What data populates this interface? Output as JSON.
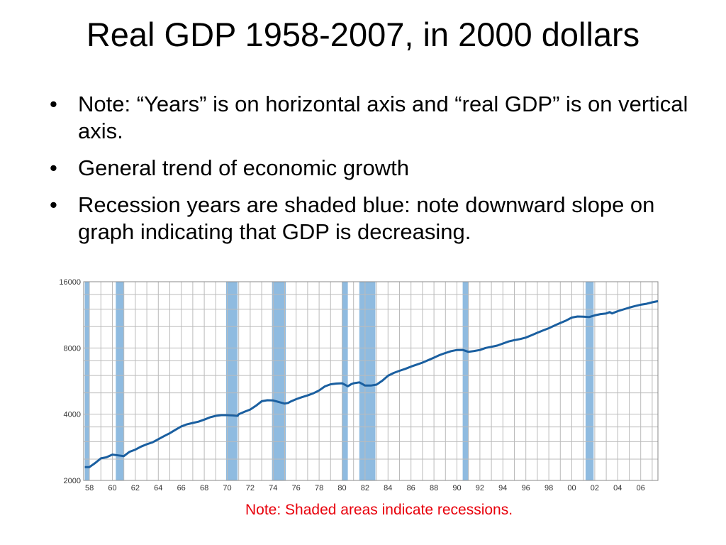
{
  "slide": {
    "title": "Real GDP 1958-2007, in 2000 dollars",
    "bullets": [
      "Note: “Years” is on horizontal axis and “real GDP” is on vertical axis.",
      "General trend of economic growth",
      "Recession years are shaded blue: note downward slope on graph indicating that GDP is decreasing."
    ],
    "bullet_glyph": "•",
    "footnote": "Note: Shaded areas indicate recessions."
  },
  "chart_data": {
    "type": "line",
    "title": "",
    "xlabel": "",
    "ylabel": "",
    "y_scale": "log",
    "ylim": [
      2000,
      16000
    ],
    "xlim": [
      1957.5,
      2007.5
    ],
    "grid": true,
    "y_ticks": [
      2000,
      4000,
      8000,
      16000
    ],
    "x_tick_labels": [
      "58",
      "60",
      "62",
      "64",
      "66",
      "68",
      "70",
      "72",
      "74",
      "76",
      "78",
      "80",
      "82",
      "84",
      "86",
      "88",
      "90",
      "92",
      "94",
      "96",
      "98",
      "00",
      "02",
      "04",
      "06"
    ],
    "x_tick_values": [
      1958,
      1960,
      1962,
      1964,
      1966,
      1968,
      1970,
      1972,
      1974,
      1976,
      1978,
      1980,
      1982,
      1984,
      1986,
      1988,
      1990,
      1992,
      1994,
      1996,
      1998,
      2000,
      2002,
      2004,
      2006
    ],
    "line_color": "#1a5fa0",
    "recession_color": "#8fbbe0",
    "recessions": [
      {
        "start": 1957.6,
        "end": 1958.0
      },
      {
        "start": 1960.3,
        "end": 1961.0
      },
      {
        "start": 1969.9,
        "end": 1970.9
      },
      {
        "start": 1973.9,
        "end": 1975.1
      },
      {
        "start": 1980.0,
        "end": 1980.5
      },
      {
        "start": 1981.5,
        "end": 1982.9
      },
      {
        "start": 1990.5,
        "end": 1991.0
      },
      {
        "start": 2001.2,
        "end": 2001.9
      }
    ],
    "series": [
      {
        "x": [
          1957.6,
          1958.0,
          1958.5,
          1959.0,
          1959.5,
          1960.0,
          1960.5,
          1961.0,
          1961.5,
          1962.0,
          1962.5,
          1963.0,
          1963.5,
          1964.0,
          1964.5,
          1965.0,
          1965.5,
          1966.0,
          1966.5,
          1967.0,
          1967.5,
          1968.0,
          1968.5,
          1969.0,
          1969.5,
          1970.0,
          1970.5,
          1970.9,
          1971.0,
          1971.5,
          1972.0,
          1972.5,
          1973.0,
          1973.5,
          1974.0,
          1974.5,
          1975.0,
          1975.3,
          1975.5,
          1976.0,
          1976.5,
          1977.0,
          1977.5,
          1978.0,
          1978.5,
          1979.0,
          1979.5,
          1980.0,
          1980.5,
          1980.8,
          1981.0,
          1981.5,
          1982.0,
          1982.5,
          1983.0,
          1983.5,
          1984.0,
          1984.5,
          1985.0,
          1985.5,
          1986.0,
          1986.5,
          1987.0,
          1987.5,
          1988.0,
          1988.5,
          1989.0,
          1989.5,
          1990.0,
          1990.5,
          1991.0,
          1991.5,
          1992.0,
          1992.5,
          1993.0,
          1993.5,
          1994.0,
          1994.5,
          1995.0,
          1995.5,
          1996.0,
          1996.5,
          1997.0,
          1997.5,
          1998.0,
          1998.5,
          1999.0,
          1999.5,
          2000.0,
          2000.5,
          2001.0,
          2001.5,
          2002.0,
          2002.5,
          2003.0,
          2003.3,
          2003.5,
          2004.0,
          2004.5,
          2005.0,
          2005.5,
          2006.0,
          2006.5,
          2007.0,
          2007.5
        ],
        "y": [
          2300,
          2300,
          2400,
          2520,
          2550,
          2620,
          2600,
          2580,
          2700,
          2760,
          2850,
          2920,
          2980,
          3080,
          3180,
          3280,
          3400,
          3520,
          3600,
          3650,
          3700,
          3780,
          3870,
          3930,
          3960,
          3960,
          3950,
          3930,
          4000,
          4100,
          4200,
          4370,
          4580,
          4630,
          4620,
          4540,
          4470,
          4500,
          4560,
          4680,
          4780,
          4870,
          4980,
          5130,
          5350,
          5470,
          5510,
          5530,
          5360,
          5480,
          5530,
          5580,
          5400,
          5400,
          5450,
          5680,
          5980,
          6160,
          6300,
          6430,
          6580,
          6720,
          6860,
          7040,
          7230,
          7430,
          7590,
          7740,
          7830,
          7840,
          7680,
          7750,
          7830,
          8000,
          8100,
          8200,
          8380,
          8560,
          8680,
          8780,
          8920,
          9140,
          9380,
          9610,
          9840,
          10120,
          10390,
          10660,
          11000,
          11120,
          11100,
          11050,
          11250,
          11400,
          11480,
          11640,
          11480,
          11760,
          11980,
          12200,
          12400,
          12580,
          12700,
          12900,
          13050
        ]
      }
    ]
  }
}
